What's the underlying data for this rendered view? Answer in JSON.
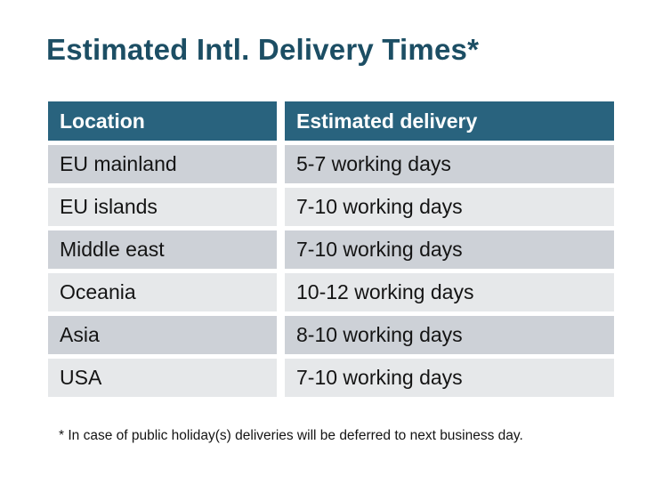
{
  "title": "Estimated Intl. Delivery Times*",
  "table": {
    "headers": [
      "Location",
      "Estimated delivery"
    ],
    "rows": [
      {
        "location": "EU mainland",
        "delivery": "5-7 working days"
      },
      {
        "location": "EU islands",
        "delivery": "7-10 working days"
      },
      {
        "location": "Middle east",
        "delivery": "7-10 working days"
      },
      {
        "location": "Oceania",
        "delivery": "10-12 working days"
      },
      {
        "location": "Asia",
        "delivery": "8-10 working days"
      },
      {
        "location": "USA",
        "delivery": "7-10 working days"
      }
    ]
  },
  "footnote": "* In case of public holiday(s) deliveries will be deferred to next business day.",
  "colors": {
    "header_bg": "#29637E",
    "header_text": "#ffffff",
    "row_dark": "#CDD1D7",
    "row_light": "#E6E8EA",
    "title_text": "#1C4E64",
    "body_text": "#141414",
    "page_bg": "#ffffff"
  }
}
